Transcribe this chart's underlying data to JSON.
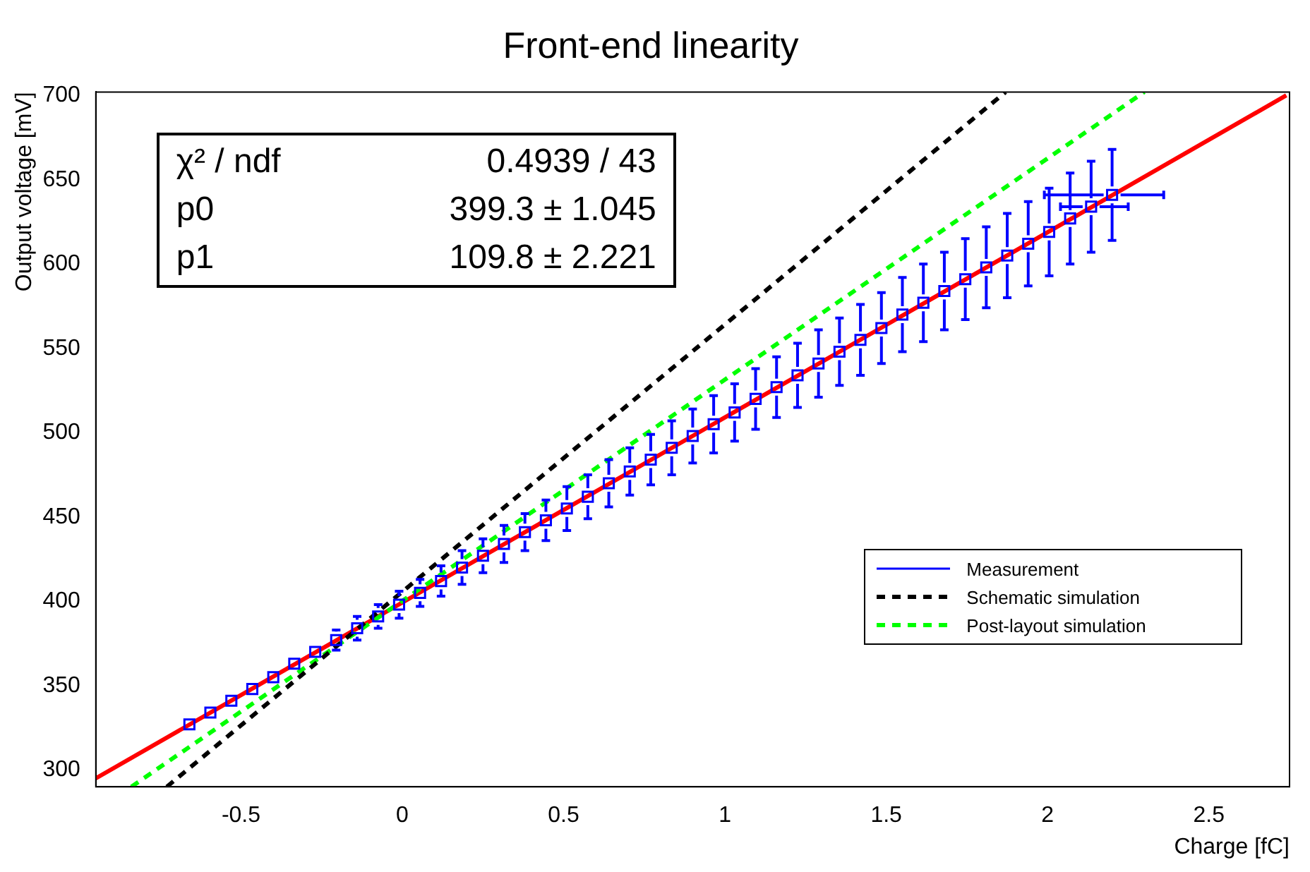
{
  "chart_data": {
    "type": "scatter",
    "title": "Front-end linearity",
    "xlabel": "Charge [fC]",
    "ylabel": "Output voltage [mV]",
    "xlim": [
      -0.95,
      2.75
    ],
    "xticks": [
      -0.5,
      0,
      0.5,
      1,
      1.5,
      2,
      2.5
    ],
    "ylim": [
      290,
      702
    ],
    "yticks": [
      300,
      350,
      400,
      450,
      500,
      550,
      600,
      650,
      700
    ],
    "grid": false,
    "legend": "bottom right",
    "annotations": [
      "χ² / ndf",
      "0.4939 / 43",
      "p0",
      "399.3 ± 1.045",
      "p1",
      "109.8 ± 2.221"
    ],
    "series": [
      {
        "name": "Measurement",
        "type": "scatter",
        "marker": "square",
        "color": "#0000ff",
        "x": [
          -0.66,
          -0.595,
          -0.53,
          -0.465,
          -0.4,
          -0.335,
          -0.27,
          -0.205,
          -0.14,
          -0.075,
          -0.01,
          0.055,
          0.12,
          0.185,
          0.25,
          0.315,
          0.38,
          0.445,
          0.51,
          0.575,
          0.64,
          0.705,
          0.77,
          0.835,
          0.9,
          0.965,
          1.03,
          1.095,
          1.16,
          1.225,
          1.29,
          1.355,
          1.42,
          1.485,
          1.55,
          1.615,
          1.68,
          1.745,
          1.81,
          1.875,
          1.94,
          2.005,
          2.07,
          2.135,
          2.2
        ],
        "values": [
          327,
          334,
          341,
          348,
          355,
          363,
          370,
          377,
          384,
          391,
          398,
          405,
          412,
          420,
          427,
          434,
          441,
          448,
          455,
          462,
          470,
          477,
          484,
          491,
          498,
          505,
          512,
          520,
          527,
          534,
          541,
          548,
          555,
          562,
          570,
          577,
          584,
          591,
          598,
          605,
          612,
          619,
          627,
          634,
          641
        ],
        "errors": [
          null,
          null,
          null,
          null,
          null,
          null,
          null,
          6,
          7,
          7,
          8,
          8,
          9,
          10,
          10,
          11,
          11,
          12,
          13,
          13,
          14,
          14,
          15,
          16,
          16,
          17,
          17,
          18,
          18,
          19,
          20,
          20,
          21,
          21,
          22,
          23,
          23,
          24,
          24,
          25,
          25,
          26,
          27,
          27,
          27
        ],
        "xerrors": [
          null,
          null,
          null,
          null,
          null,
          null,
          null,
          null,
          null,
          null,
          null,
          null,
          null,
          null,
          null,
          null,
          null,
          null,
          null,
          null,
          null,
          null,
          null,
          null,
          null,
          null,
          null,
          null,
          null,
          null,
          null,
          null,
          null,
          null,
          null,
          null,
          null,
          null,
          null,
          null,
          null,
          null,
          null,
          [
            2.04,
            2.25
          ],
          [
            1.99,
            2.36
          ]
        ]
      },
      {
        "name": "Schematic simulation",
        "type": "line",
        "line_style": "dashed",
        "color": "#000000",
        "x": [
          -0.73,
          1.87
        ],
        "values": [
          290,
          702
        ]
      },
      {
        "name": "Post-layout simulation",
        "type": "line",
        "line_style": "dashed",
        "color": "#00ff00",
        "x": [
          -0.84,
          2.3
        ],
        "values": [
          290,
          702
        ]
      },
      {
        "type": "line",
        "line_style": "solid",
        "color": "#ff0000",
        "x": [
          -0.95,
          2.74
        ],
        "values": [
          295,
          700
        ]
      }
    ]
  }
}
